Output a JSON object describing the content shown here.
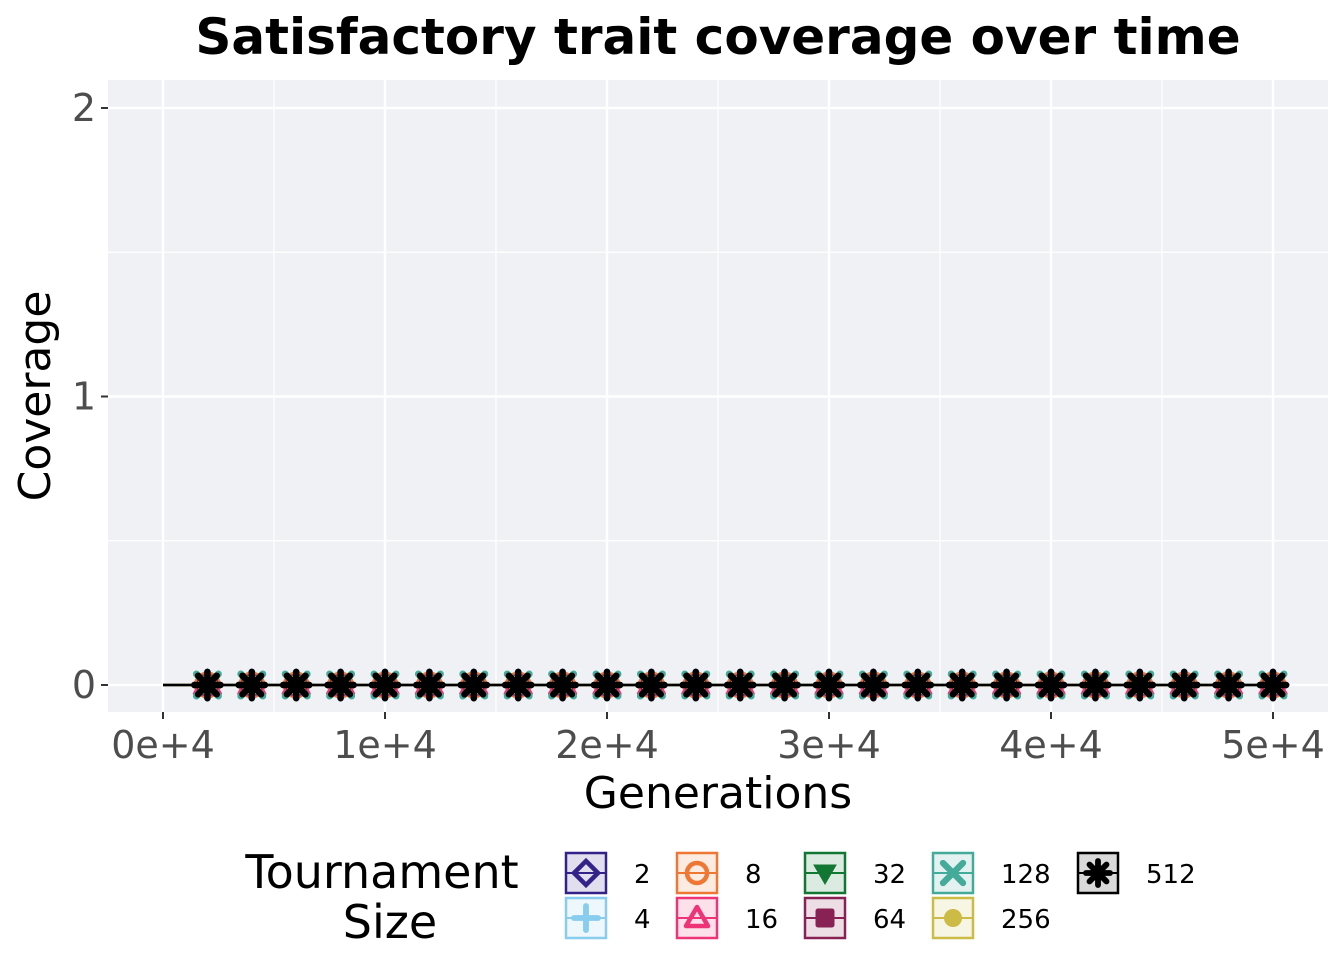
{
  "chart_data": {
    "type": "line",
    "title": "Satisfactory trait coverage over time",
    "xlabel": "Generations",
    "ylabel": "Coverage",
    "xlim": [
      0,
      50000
    ],
    "ylim": [
      0,
      2
    ],
    "x_ticks": [
      0,
      10000,
      20000,
      30000,
      40000,
      50000
    ],
    "x_tick_labels": [
      "0e+4",
      "1e+4",
      "2e+4",
      "3e+4",
      "4e+4",
      "5e+4"
    ],
    "y_ticks": [
      0,
      1,
      2
    ],
    "y_tick_labels": [
      "0",
      "1",
      "2"
    ],
    "grid": true,
    "x": [
      2000,
      4000,
      6000,
      8000,
      10000,
      12000,
      14000,
      16000,
      18000,
      20000,
      22000,
      24000,
      26000,
      28000,
      30000,
      32000,
      34000,
      36000,
      38000,
      40000,
      42000,
      44000,
      46000,
      48000,
      50000
    ],
    "legend": {
      "title_lines": [
        "Tournament",
        "Size"
      ],
      "placement": "bottom"
    },
    "series": [
      {
        "name": "2",
        "color": "#332288",
        "marker": "diamond",
        "values": [
          0,
          0,
          0,
          0,
          0,
          0,
          0,
          0,
          0,
          0,
          0,
          0,
          0,
          0,
          0,
          0,
          0,
          0,
          0,
          0,
          0,
          0,
          0,
          0,
          0
        ]
      },
      {
        "name": "4",
        "color": "#88CCEE",
        "marker": "plus",
        "values": [
          0,
          0,
          0,
          0,
          0,
          0,
          0,
          0,
          0,
          0,
          0,
          0,
          0,
          0,
          0,
          0,
          0,
          0,
          0,
          0,
          0,
          0,
          0,
          0,
          0
        ]
      },
      {
        "name": "8",
        "color": "#EE7733",
        "marker": "circle",
        "values": [
          0,
          0,
          0,
          0,
          0,
          0,
          0,
          0,
          0,
          0,
          0,
          0,
          0,
          0,
          0,
          0,
          0,
          0,
          0,
          0,
          0,
          0,
          0,
          0,
          0
        ]
      },
      {
        "name": "16",
        "color": "#EE3377",
        "marker": "triangle-up",
        "values": [
          0,
          0,
          0,
          0,
          0,
          0,
          0,
          0,
          0,
          0,
          0,
          0,
          0,
          0,
          0,
          0,
          0,
          0,
          0,
          0,
          0,
          0,
          0,
          0,
          0
        ]
      },
      {
        "name": "32",
        "color": "#117733",
        "marker": "triangle-down",
        "values": [
          0,
          0,
          0,
          0,
          0,
          0,
          0,
          0,
          0,
          0,
          0,
          0,
          0,
          0,
          0,
          0,
          0,
          0,
          0,
          0,
          0,
          0,
          0,
          0,
          0
        ]
      },
      {
        "name": "64",
        "color": "#882255",
        "marker": "square",
        "values": [
          0,
          0,
          0,
          0,
          0,
          0,
          0,
          0,
          0,
          0,
          0,
          0,
          0,
          0,
          0,
          0,
          0,
          0,
          0,
          0,
          0,
          0,
          0,
          0,
          0
        ]
      },
      {
        "name": "128",
        "color": "#44AA99",
        "marker": "cross",
        "values": [
          0,
          0,
          0,
          0,
          0,
          0,
          0,
          0,
          0,
          0,
          0,
          0,
          0,
          0,
          0,
          0,
          0,
          0,
          0,
          0,
          0,
          0,
          0,
          0,
          0
        ]
      },
      {
        "name": "256",
        "color": "#CCBB44",
        "marker": "dot",
        "values": [
          0,
          0,
          0,
          0,
          0,
          0,
          0,
          0,
          0,
          0,
          0,
          0,
          0,
          0,
          0,
          0,
          0,
          0,
          0,
          0,
          0,
          0,
          0,
          0,
          0
        ]
      },
      {
        "name": "512",
        "color": "#000000",
        "marker": "asterisk",
        "values": [
          0,
          0,
          0,
          0,
          0,
          0,
          0,
          0,
          0,
          0,
          0,
          0,
          0,
          0,
          0,
          0,
          0,
          0,
          0,
          0,
          0,
          0,
          0,
          0,
          0
        ]
      }
    ]
  }
}
